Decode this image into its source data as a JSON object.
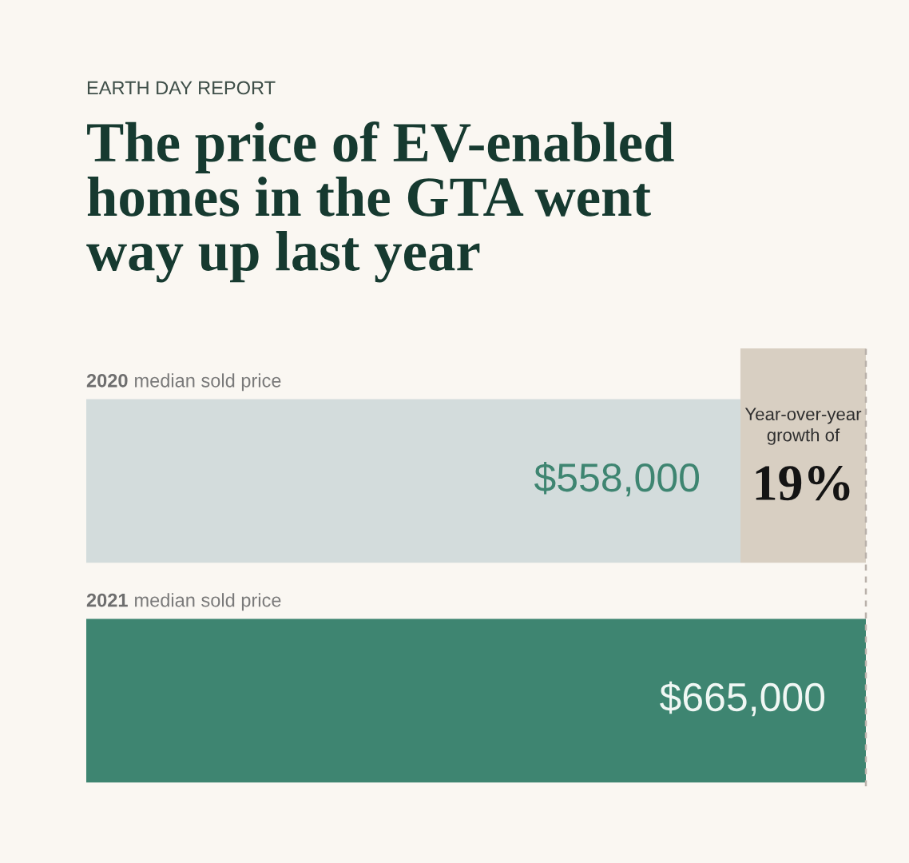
{
  "chart_data": {
    "type": "bar",
    "orientation": "horizontal",
    "subtitle": "EARTH DAY REPORT",
    "title": "The price of EV-enabled\nhomes in the GTA went\nway up last year",
    "categories": [
      "2020 median sold price",
      "2021 median sold price"
    ],
    "values": [
      558000,
      665000
    ],
    "colors": [
      "#d3dcdc",
      "#3e8571"
    ],
    "value_labels": [
      "$558,000",
      "$665,000"
    ],
    "bands": [
      {
        "axis": "x",
        "from": 558000,
        "to": 665000,
        "label": "Year-over-year\ngrowth of",
        "color": "#d8cfc2"
      }
    ],
    "ref_lines": [
      {
        "axis": "x",
        "value": 665000,
        "line_style": "dashed",
        "color": "#b9b1aa"
      }
    ],
    "annotations": [
      "19%"
    ]
  }
}
